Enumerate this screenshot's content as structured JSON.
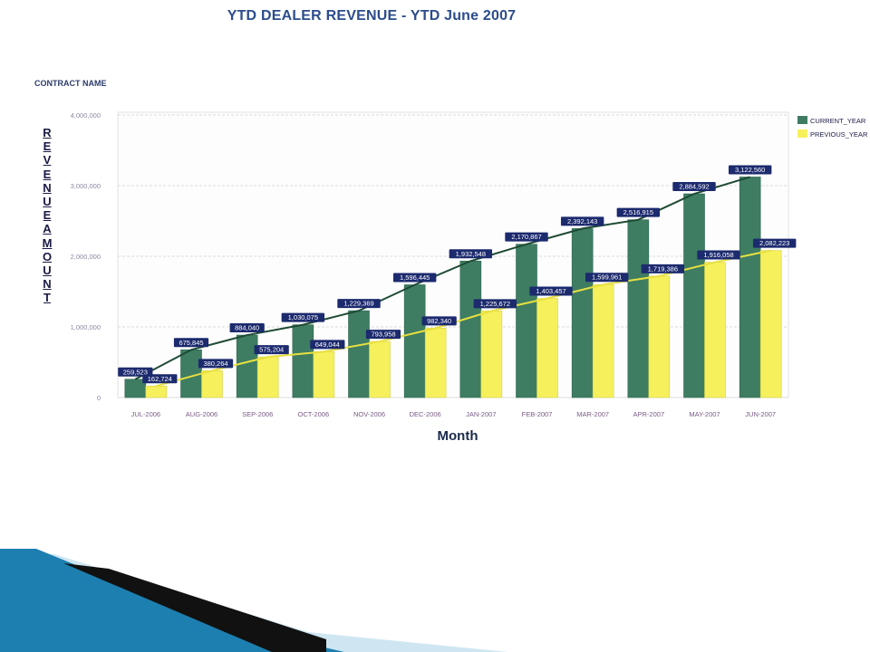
{
  "chart_data": {
    "type": "bar",
    "title": "YTD DEALER REVENUE - YTD June 2007",
    "subtitle": "CONTRACT NAME",
    "xlabel": "Month",
    "ylabel": "REVENUE AMOUNT",
    "ylim": [
      0,
      4000000
    ],
    "yticks": [
      "0",
      "1,000,000",
      "2,000,000",
      "3,000,000",
      "4,000,000"
    ],
    "ytick_values": [
      0,
      1000000,
      2000000,
      3000000,
      4000000
    ],
    "grid": true,
    "legend_position": "top-right",
    "overlay": "line through bar tops for each series",
    "categories": [
      "JUL-2006",
      "AUG-2006",
      "SEP-2006",
      "OCT-2006",
      "NOV-2006",
      "DEC-2006",
      "JAN-2007",
      "FEB-2007",
      "MAR-2007",
      "APR-2007",
      "MAY-2007",
      "JUN-2007"
    ],
    "series": [
      {
        "name": "CURRENT_YEAR",
        "legend_text": "CURRENT_YEAR",
        "color": "#3e7d62",
        "values": [
          259523,
          675845,
          884040,
          1030075,
          1229369,
          1596445,
          1932548,
          2170867,
          2392143,
          2516915,
          2884592,
          3122560
        ],
        "labels": [
          "259,523",
          "675,845",
          "884,040",
          "1,030,075",
          "1,229,369",
          "1,596,445",
          "1,932,548",
          "2,170,867",
          "2,392,143",
          "2,516,915",
          "2,884,592",
          "3,122,560"
        ]
      },
      {
        "name": "PREVIOUS_YEAR",
        "legend_text": "PREVIOUS_YEAR",
        "color": "#f5f05c",
        "values": [
          162724,
          380264,
          575204,
          649044,
          793958,
          982340,
          1225672,
          1403457,
          1599961,
          1719386,
          1916058,
          2082223
        ],
        "labels": [
          "162,724",
          "380,264",
          "575,204",
          "649,044",
          "793,958",
          "982,340",
          "1,225,672",
          "1,403,457",
          "1,599,961",
          "1,719,386",
          "1,916,058",
          "2,082,223"
        ]
      }
    ]
  },
  "colors": {
    "title": "#2c4c8c",
    "label_box": "#1c2a6e",
    "current_line": "#1e4a34",
    "previous_line": "#e8e040",
    "decor_blue": "#1d7fb0",
    "decor_light": "#cfe6f2",
    "decor_dark": "#111111"
  }
}
